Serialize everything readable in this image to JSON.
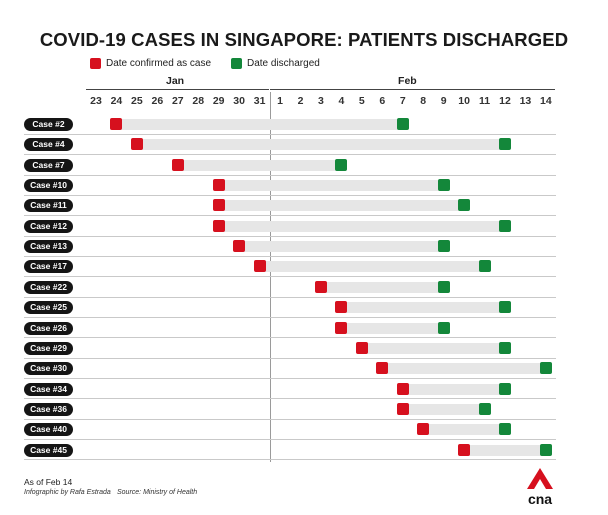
{
  "chart_data": {
    "type": "gantt",
    "title": "COVID-19 CASES IN SINGAPORE: PATIENTS DISCHARGED",
    "legend": [
      {
        "label": "Date confirmed as case",
        "color": "#d6101e"
      },
      {
        "label": "Date discharged",
        "color": "#13873a"
      }
    ],
    "months": [
      {
        "name": "Jan",
        "start_index": 0,
        "end_index": 8
      },
      {
        "name": "Feb",
        "start_index": 9,
        "end_index": 22
      }
    ],
    "x_ticks": [
      "23",
      "24",
      "25",
      "26",
      "27",
      "28",
      "29",
      "30",
      "31",
      "1",
      "2",
      "3",
      "4",
      "5",
      "6",
      "7",
      "8",
      "9",
      "10",
      "11",
      "12",
      "13",
      "14"
    ],
    "cases": [
      {
        "label": "Case #2",
        "confirmed": "Jan 24",
        "discharged": "Feb 7"
      },
      {
        "label": "Case #4",
        "confirmed": "Jan 25",
        "discharged": "Feb 12"
      },
      {
        "label": "Case #7",
        "confirmed": "Jan 27",
        "discharged": "Feb 4"
      },
      {
        "label": "Case #10",
        "confirmed": "Jan 29",
        "discharged": "Feb 9"
      },
      {
        "label": "Case #11",
        "confirmed": "Jan 29",
        "discharged": "Feb 10"
      },
      {
        "label": "Case #12",
        "confirmed": "Jan 29",
        "discharged": "Feb 12"
      },
      {
        "label": "Case #13",
        "confirmed": "Jan 30",
        "discharged": "Feb 9"
      },
      {
        "label": "Case #17",
        "confirmed": "Jan 31",
        "discharged": "Feb 11"
      },
      {
        "label": "Case #22",
        "confirmed": "Feb 3",
        "discharged": "Feb 9"
      },
      {
        "label": "Case #25",
        "confirmed": "Feb 4",
        "discharged": "Feb 12"
      },
      {
        "label": "Case #26",
        "confirmed": "Feb 4",
        "discharged": "Feb 9"
      },
      {
        "label": "Case #29",
        "confirmed": "Feb 5",
        "discharged": "Feb 12"
      },
      {
        "label": "Case #30",
        "confirmed": "Feb 6",
        "discharged": "Feb 14"
      },
      {
        "label": "Case #34",
        "confirmed": "Feb 7",
        "discharged": "Feb 12"
      },
      {
        "label": "Case #36",
        "confirmed": "Feb 7",
        "discharged": "Feb 11"
      },
      {
        "label": "Case #40",
        "confirmed": "Feb 8",
        "discharged": "Feb 12"
      },
      {
        "label": "Case #45",
        "confirmed": "Feb 10",
        "discharged": "Feb 14"
      }
    ]
  },
  "footer": {
    "as_of": "As of Feb 14",
    "infographic": "Infographic by Rafa Estrada",
    "source": "Source: Ministry of Health"
  },
  "brand": {
    "logo_text": "cna",
    "logo_color": "#d6101e"
  }
}
